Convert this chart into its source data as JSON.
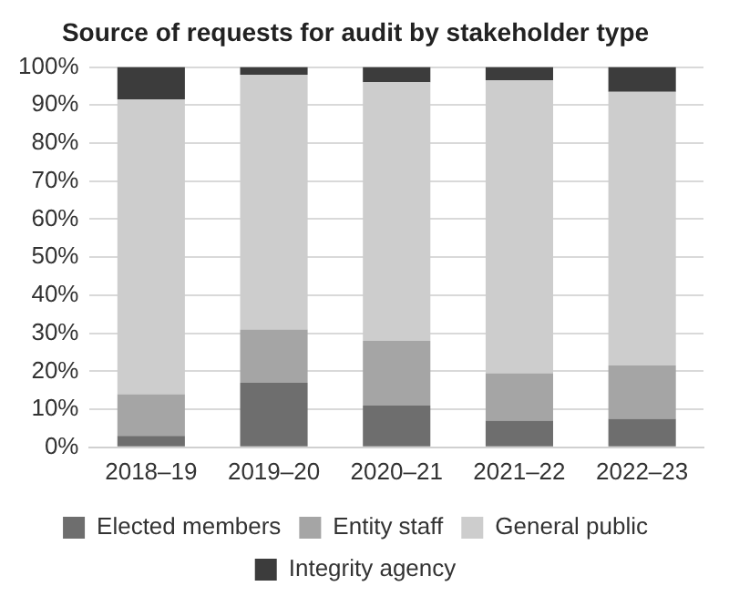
{
  "chart_data": {
    "type": "bar",
    "stacked": true,
    "title": "Source of requests for audit by stakeholder type",
    "categories": [
      "2018–19",
      "2019–20",
      "2020–21",
      "2021–22",
      "2022–23"
    ],
    "series": [
      {
        "name": "Elected members",
        "color": "#6e6e6e",
        "values": [
          3,
          17,
          11,
          7,
          7.5
        ]
      },
      {
        "name": "Entity staff",
        "color": "#a5a5a5",
        "values": [
          11,
          14,
          17,
          12.5,
          14
        ]
      },
      {
        "name": "General public",
        "color": "#cdcdcd",
        "values": [
          77.5,
          67,
          68,
          77,
          72
        ]
      },
      {
        "name": "Integrity agency",
        "color": "#3c3c3c",
        "values": [
          8.5,
          2,
          4,
          3.5,
          6.5
        ]
      }
    ],
    "ylim": [
      0,
      100
    ],
    "yticks": [
      {
        "value": 0,
        "label": "0%"
      },
      {
        "value": 10,
        "label": "10%"
      },
      {
        "value": 20,
        "label": "20%"
      },
      {
        "value": 30,
        "label": "30%"
      },
      {
        "value": 40,
        "label": "40%"
      },
      {
        "value": 50,
        "label": "50%"
      },
      {
        "value": 60,
        "label": "60%"
      },
      {
        "value": 70,
        "label": "70%"
      },
      {
        "value": 80,
        "label": "80%"
      },
      {
        "value": 90,
        "label": "90%"
      },
      {
        "value": 100,
        "label": "100%"
      }
    ],
    "grid": "y",
    "legend": "bottom"
  }
}
